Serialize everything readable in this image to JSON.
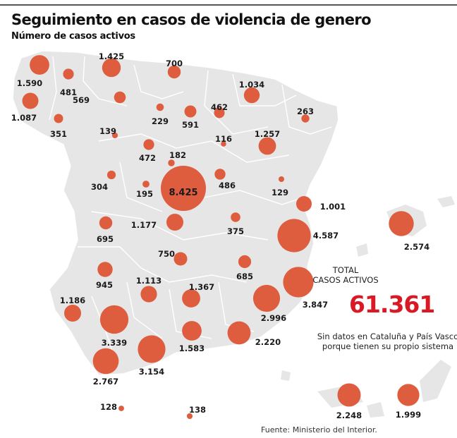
{
  "header": {
    "title": "Seguimiento en casos de violencia de genero",
    "subtitle": "Número de casos activos"
  },
  "summary": {
    "total_title_line1": "TOTAL",
    "total_title_line2": "CASOS ACTIVOS",
    "total_value": "61.361",
    "note_line1": "Sin datos en Cataluña y País Vasco",
    "note_line2": "porque tienen su propio sistema",
    "source": "Fuente: Ministerio del Interior."
  },
  "colors": {
    "bubble": "#de5d3f",
    "land": "#e6e6e6",
    "border": "#ffffff",
    "total": "#d91a24"
  },
  "chart_data": {
    "type": "bubble-map",
    "title": "Seguimiento en casos de violencia de genero",
    "subtitle": "Número de casos activos",
    "region": "Spain (provinces)",
    "total": 61361,
    "points": [
      {
        "value": 1590,
        "label": "1.590"
      },
      {
        "value": 481,
        "label": "481"
      },
      {
        "value": 1425,
        "label": "1.425"
      },
      {
        "value": 700,
        "label": "700"
      },
      {
        "value": 1087,
        "label": "1.087"
      },
      {
        "value": 569,
        "label": "569"
      },
      {
        "value": 1034,
        "label": "1.034"
      },
      {
        "value": 229,
        "label": "229"
      },
      {
        "value": 591,
        "label": "591"
      },
      {
        "value": 462,
        "label": "462"
      },
      {
        "value": 263,
        "label": "263"
      },
      {
        "value": 351,
        "label": "351"
      },
      {
        "value": 139,
        "label": "139"
      },
      {
        "value": 116,
        "label": "116"
      },
      {
        "value": 1257,
        "label": "1.257"
      },
      {
        "value": 472,
        "label": "472"
      },
      {
        "value": 182,
        "label": "182"
      },
      {
        "value": 304,
        "label": "304"
      },
      {
        "value": 8425,
        "label": "8.425"
      },
      {
        "value": 486,
        "label": "486"
      },
      {
        "value": 195,
        "label": "195"
      },
      {
        "value": 129,
        "label": "129"
      },
      {
        "value": 1001,
        "label": "1.001"
      },
      {
        "value": 1177,
        "label": "1.177"
      },
      {
        "value": 375,
        "label": "375"
      },
      {
        "value": 695,
        "label": "695"
      },
      {
        "value": 4587,
        "label": "4.587"
      },
      {
        "value": 2574,
        "label": "2.574"
      },
      {
        "value": 750,
        "label": "750"
      },
      {
        "value": 685,
        "label": "685"
      },
      {
        "value": 945,
        "label": "945"
      },
      {
        "value": 1113,
        "label": "1.113"
      },
      {
        "value": 1367,
        "label": "1.367"
      },
      {
        "value": 3847,
        "label": "3.847"
      },
      {
        "value": 1186,
        "label": "1.186"
      },
      {
        "value": 2996,
        "label": "2.996"
      },
      {
        "value": 3339,
        "label": "3.339"
      },
      {
        "value": 1583,
        "label": "1.583"
      },
      {
        "value": 2220,
        "label": "2.220"
      },
      {
        "value": 3154,
        "label": "3.154"
      },
      {
        "value": 2767,
        "label": "2.767"
      },
      {
        "value": 128,
        "label": "128"
      },
      {
        "value": 138,
        "label": "138"
      },
      {
        "value": 2248,
        "label": "2.248"
      },
      {
        "value": 1999,
        "label": "1.999"
      }
    ]
  }
}
